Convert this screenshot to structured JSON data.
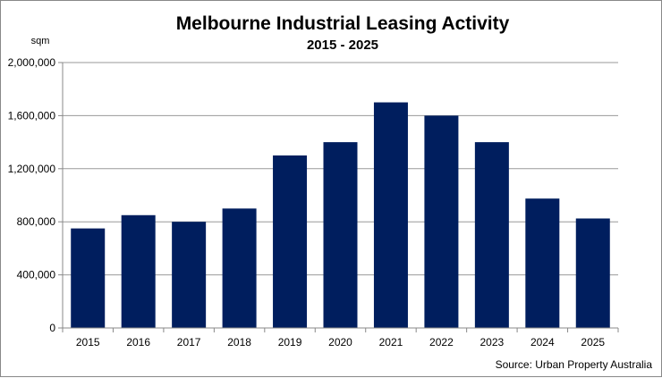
{
  "chart_data": {
    "type": "bar",
    "title": "Melbourne Industrial Leasing Activity",
    "subtitle": "2015 - 2025",
    "ylabel": "sqm",
    "xlabel": "",
    "source": "Source: Urban Property Australia",
    "categories": [
      "2015",
      "2016",
      "2017",
      "2018",
      "2019",
      "2020",
      "2021",
      "2022",
      "2023",
      "2024",
      "2025"
    ],
    "values": [
      750000,
      850000,
      800000,
      900000,
      1300000,
      1400000,
      1700000,
      1600000,
      1400000,
      975000,
      825000
    ],
    "ylim": [
      0,
      2000000
    ],
    "yticks": [
      0,
      400000,
      800000,
      1200000,
      1600000,
      2000000
    ],
    "ytick_labels": [
      "0",
      "400,000",
      "800,000",
      "1,200,000",
      "1,600,000",
      "2,000,000"
    ],
    "grid": true,
    "bar_color": "#001E5E",
    "grid_color": "#999999"
  }
}
